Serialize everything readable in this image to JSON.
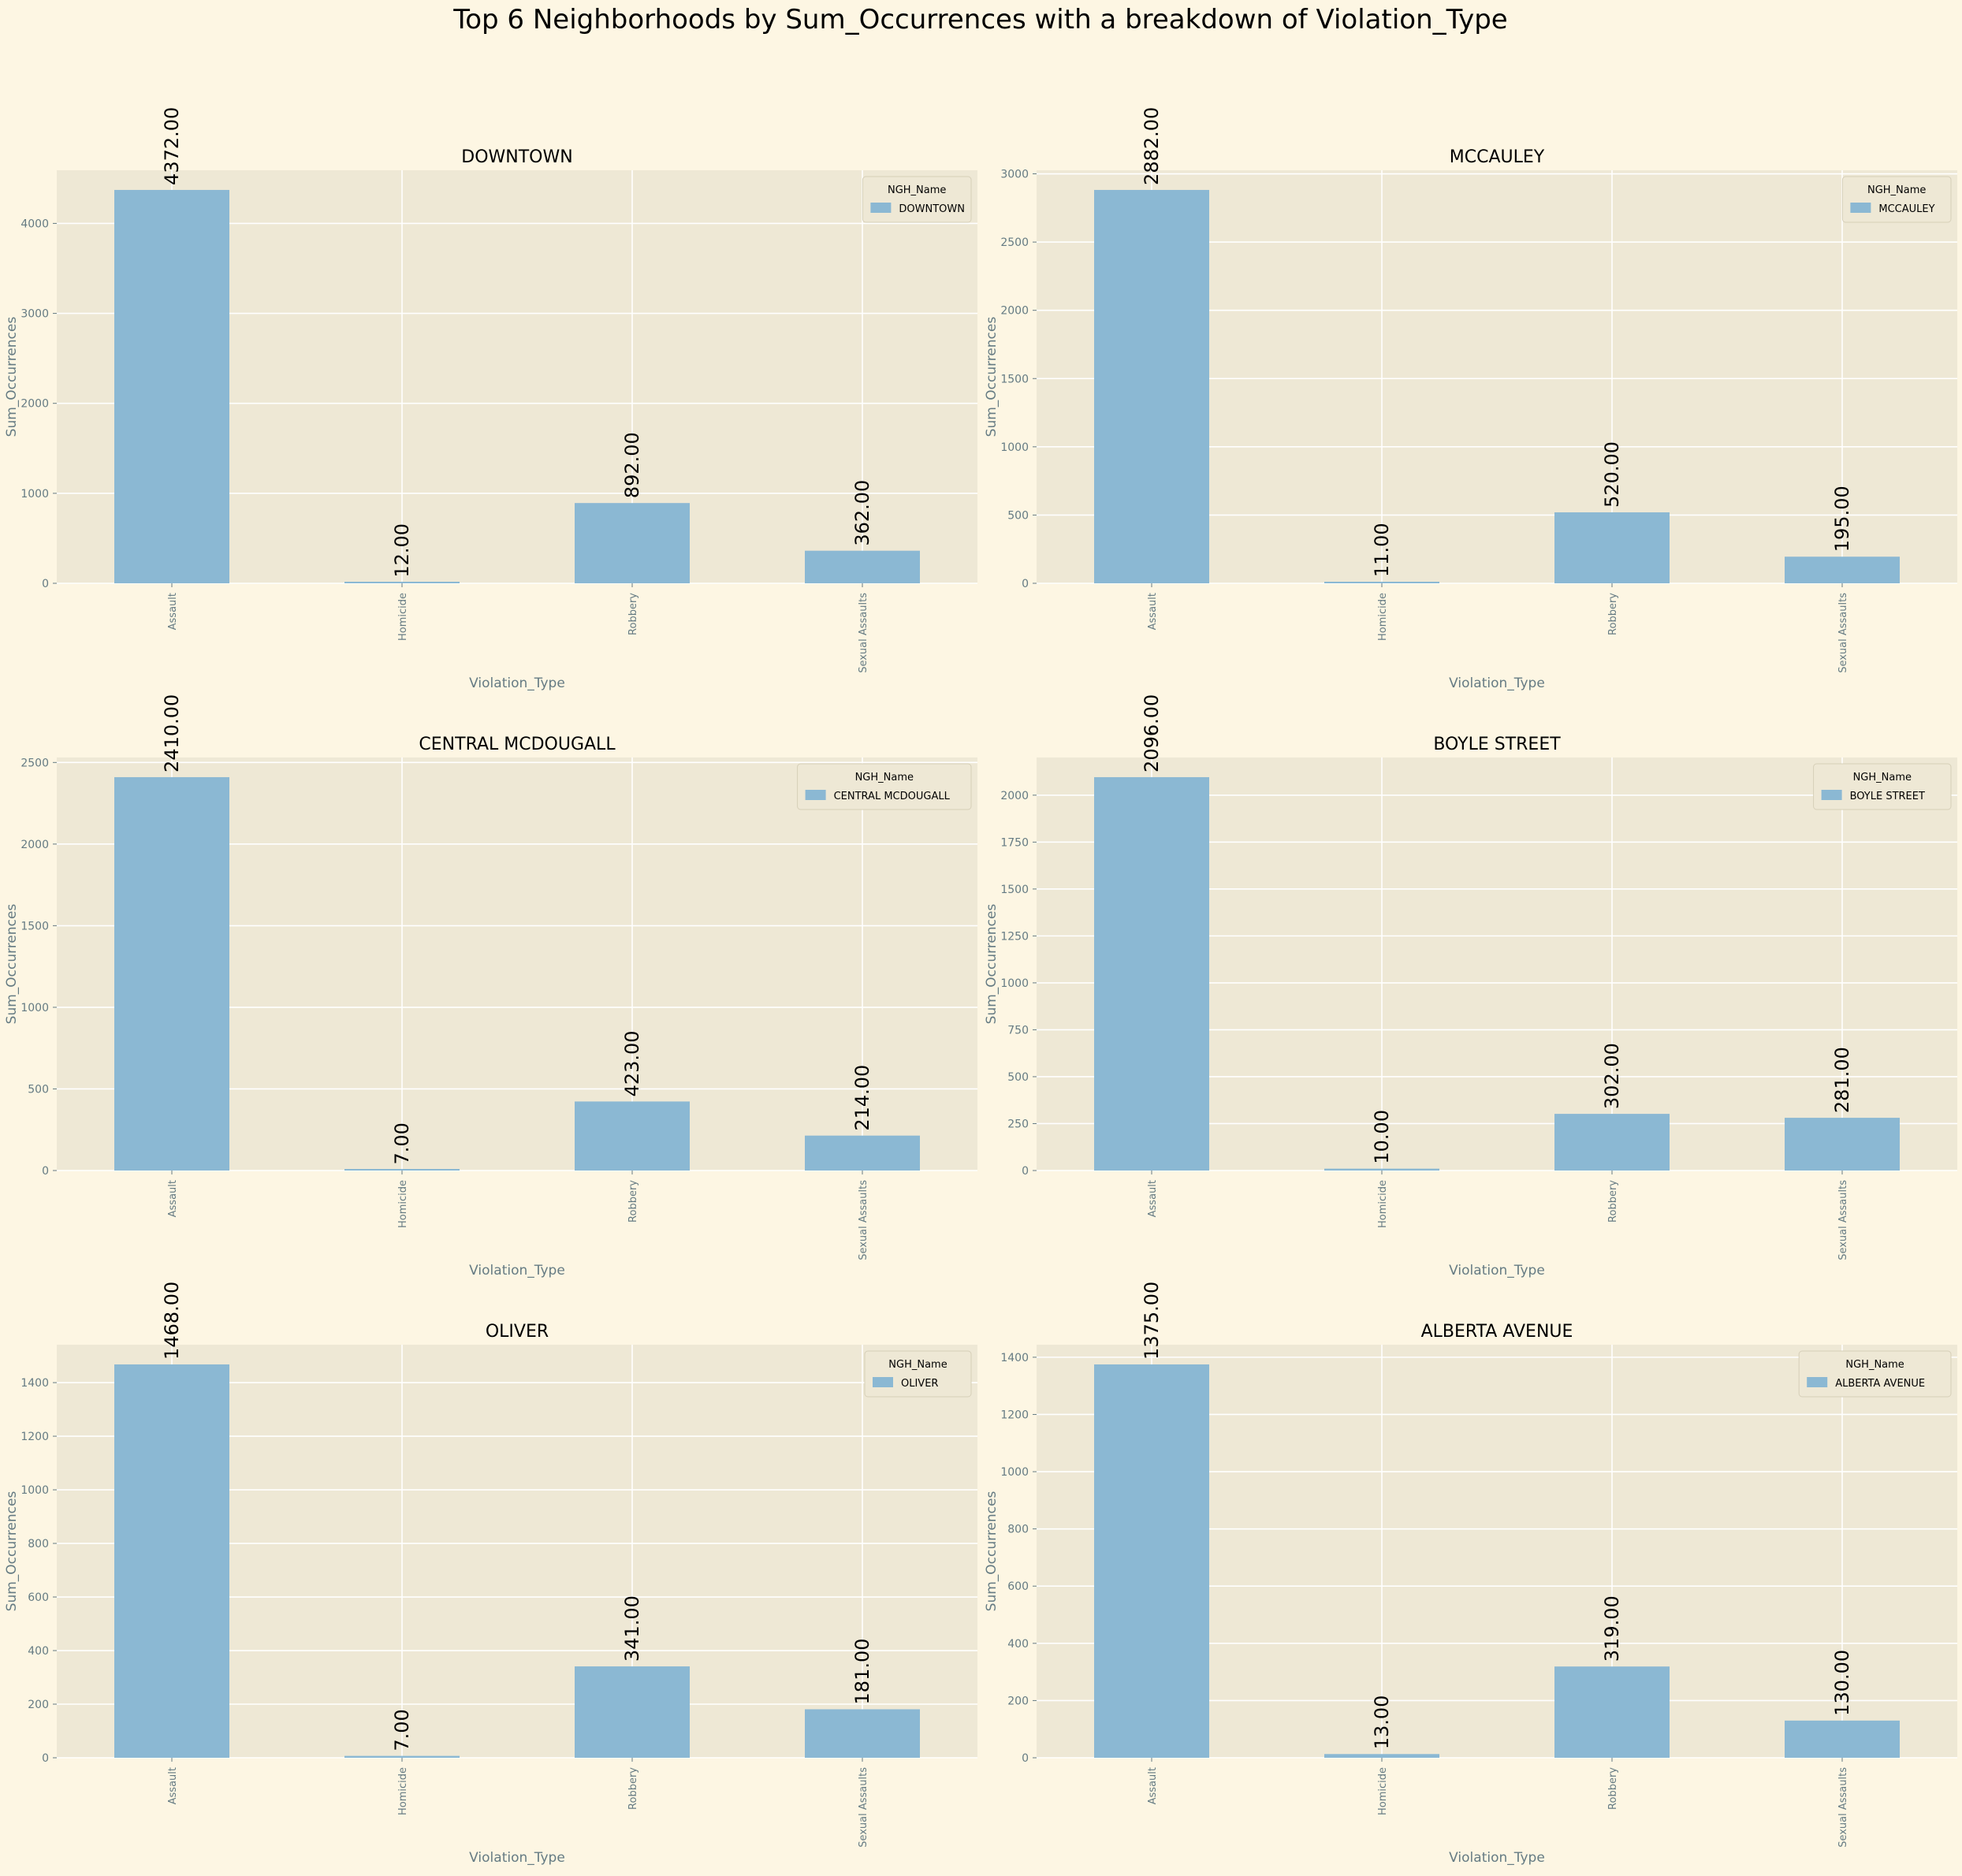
{
  "suptitle": "Top 6 Neighborhoods by Sum_Occurrences with a breakdown of Violation_Type",
  "colors": {
    "figure_bg": "#fdf6e3",
    "axes_bg": "#eee8d5",
    "bar": "#8bb8d3",
    "grid": "#ffffff",
    "tick_text": "#657b83",
    "title_text": "#000000"
  },
  "chart_data": [
    {
      "type": "bar",
      "title": "DOWNTOWN",
      "xlabel": "Violation_Type",
      "ylabel": "Sum_Occurrences",
      "categories": [
        "Assault",
        "Homicide",
        "Robbery",
        "Sexual Assaults"
      ],
      "series": [
        {
          "name": "DOWNTOWN",
          "values": [
            4372,
            12,
            892,
            362
          ]
        }
      ],
      "data_labels": [
        "4372.00",
        "12.00",
        "892.00",
        "362.00"
      ],
      "ylim": [
        0,
        4590.6
      ],
      "yticks": [
        0,
        1000,
        2000,
        3000,
        4000
      ],
      "legend_title": "NGH_Name",
      "legend_position": "top-right",
      "grid": true
    },
    {
      "type": "bar",
      "title": "MCCAULEY",
      "xlabel": "Violation_Type",
      "ylabel": "Sum_Occurrences",
      "categories": [
        "Assault",
        "Homicide",
        "Robbery",
        "Sexual Assaults"
      ],
      "series": [
        {
          "name": "MCCAULEY",
          "values": [
            2882,
            11,
            520,
            195
          ]
        }
      ],
      "data_labels": [
        "2882.00",
        "11.00",
        "520.00",
        "195.00"
      ],
      "ylim": [
        0,
        3026.1
      ],
      "yticks": [
        0,
        500,
        1000,
        1500,
        2000,
        2500,
        3000
      ],
      "legend_title": "NGH_Name",
      "legend_position": "top-right",
      "grid": true
    },
    {
      "type": "bar",
      "title": "CENTRAL MCDOUGALL",
      "xlabel": "Violation_Type",
      "ylabel": "Sum_Occurrences",
      "categories": [
        "Assault",
        "Homicide",
        "Robbery",
        "Sexual Assaults"
      ],
      "series": [
        {
          "name": "CENTRAL MCDOUGALL",
          "values": [
            2410,
            7,
            423,
            214
          ]
        }
      ],
      "data_labels": [
        "2410.00",
        "7.00",
        "423.00",
        "214.00"
      ],
      "ylim": [
        0,
        2530.5
      ],
      "yticks": [
        0,
        500,
        1000,
        1500,
        2000,
        2500
      ],
      "legend_title": "NGH_Name",
      "legend_position": "top-right",
      "grid": true
    },
    {
      "type": "bar",
      "title": "BOYLE STREET",
      "xlabel": "Violation_Type",
      "ylabel": "Sum_Occurrences",
      "categories": [
        "Assault",
        "Homicide",
        "Robbery",
        "Sexual Assaults"
      ],
      "series": [
        {
          "name": "BOYLE STREET",
          "values": [
            2096,
            10,
            302,
            281
          ]
        }
      ],
      "data_labels": [
        "2096.00",
        "10.00",
        "302.00",
        "281.00"
      ],
      "ylim": [
        0,
        2200.8
      ],
      "yticks": [
        0,
        250,
        500,
        750,
        1000,
        1250,
        1500,
        1750,
        2000
      ],
      "legend_title": "NGH_Name",
      "legend_position": "top-right",
      "grid": true
    },
    {
      "type": "bar",
      "title": "OLIVER",
      "xlabel": "Violation_Type",
      "ylabel": "Sum_Occurrences",
      "categories": [
        "Assault",
        "Homicide",
        "Robbery",
        "Sexual Assaults"
      ],
      "series": [
        {
          "name": "OLIVER",
          "values": [
            1468,
            7,
            341,
            181
          ]
        }
      ],
      "data_labels": [
        "1468.00",
        "7.00",
        "341.00",
        "181.00"
      ],
      "ylim": [
        0,
        1541.4
      ],
      "yticks": [
        0,
        200,
        400,
        600,
        800,
        1000,
        1200,
        1400
      ],
      "legend_title": "NGH_Name",
      "legend_position": "top-right",
      "grid": true
    },
    {
      "type": "bar",
      "title": "ALBERTA AVENUE",
      "xlabel": "Violation_Type",
      "ylabel": "Sum_Occurrences",
      "categories": [
        "Assault",
        "Homicide",
        "Robbery",
        "Sexual Assaults"
      ],
      "series": [
        {
          "name": "ALBERTA AVENUE",
          "values": [
            1375,
            13,
            319,
            130
          ]
        }
      ],
      "data_labels": [
        "1375.00",
        "13.00",
        "319.00",
        "130.00"
      ],
      "ylim": [
        0,
        1443.75
      ],
      "yticks": [
        0,
        200,
        400,
        600,
        800,
        1000,
        1200,
        1400
      ],
      "legend_title": "NGH_Name",
      "legend_position": "top-right",
      "grid": true
    }
  ]
}
